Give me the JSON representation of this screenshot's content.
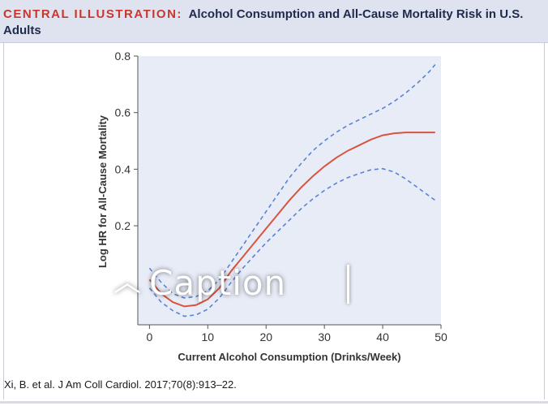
{
  "header": {
    "prefix": "CENTRAL ILLUSTRATION:",
    "title": "Alcohol Consumption and All-Cause Mortality Risk in U.S. Adults"
  },
  "citation": "Xi, B. et al. J Am Coll Cardiol. 2017;70(8):913–22.",
  "overlay": {
    "caption_label": "Caption",
    "caption_icon": "chevron-up-icon"
  },
  "colors": {
    "header_bg": "#dfe3ef",
    "plot_bg": "#e8ecf7",
    "estimate_line": "#d9543f",
    "ci_line": "#5b82d6",
    "prefix_red": "#c8362e"
  },
  "chart_data": {
    "type": "line",
    "title": "",
    "xlabel": "Current Alcohol Consumption (Drinks/Week)",
    "ylabel": "Log HR for All-Cause Mortality",
    "xlim": [
      -2,
      50
    ],
    "ylim": [
      -0.15,
      0.8
    ],
    "xticks": [
      0,
      10,
      20,
      30,
      40,
      50
    ],
    "yticks": [
      0.2,
      0.4,
      0.6,
      0.8
    ],
    "ytick_labels": [
      "0.2",
      "0.4",
      "0.6",
      "0.8"
    ],
    "grid": false,
    "series": [
      {
        "name": "",
        "style": "solid",
        "x": [
          0,
          2,
          4,
          6,
          8,
          10,
          12,
          14,
          16,
          18,
          20,
          22,
          24,
          26,
          28,
          30,
          32,
          34,
          36,
          38,
          40,
          42,
          44,
          46,
          48,
          49
        ],
        "y": [
          0.01,
          -0.04,
          -0.07,
          -0.085,
          -0.08,
          -0.06,
          -0.02,
          0.04,
          0.09,
          0.14,
          0.19,
          0.24,
          0.29,
          0.335,
          0.375,
          0.41,
          0.44,
          0.465,
          0.485,
          0.505,
          0.52,
          0.527,
          0.53,
          0.53,
          0.53,
          0.53
        ]
      },
      {
        "name": "",
        "style": "dashed",
        "x": [
          0,
          2,
          4,
          6,
          8,
          10,
          12,
          14,
          16,
          18,
          20,
          22,
          24,
          26,
          28,
          30,
          32,
          34,
          36,
          38,
          40,
          42,
          44,
          46,
          48,
          49
        ],
        "y": [
          0.05,
          0.0,
          -0.04,
          -0.055,
          -0.05,
          -0.03,
          0.01,
          0.07,
          0.13,
          0.19,
          0.25,
          0.31,
          0.37,
          0.42,
          0.465,
          0.5,
          0.53,
          0.555,
          0.575,
          0.595,
          0.615,
          0.64,
          0.67,
          0.705,
          0.745,
          0.77
        ]
      },
      {
        "name": "",
        "style": "dashed",
        "x": [
          0,
          2,
          4,
          6,
          8,
          10,
          12,
          14,
          16,
          18,
          20,
          22,
          24,
          26,
          28,
          30,
          32,
          34,
          36,
          38,
          40,
          42,
          44,
          46,
          48,
          49
        ],
        "y": [
          -0.02,
          -0.07,
          -0.1,
          -0.12,
          -0.115,
          -0.095,
          -0.055,
          0.0,
          0.05,
          0.095,
          0.14,
          0.18,
          0.22,
          0.26,
          0.295,
          0.325,
          0.35,
          0.37,
          0.385,
          0.398,
          0.402,
          0.39,
          0.365,
          0.335,
          0.305,
          0.29
        ]
      }
    ]
  }
}
